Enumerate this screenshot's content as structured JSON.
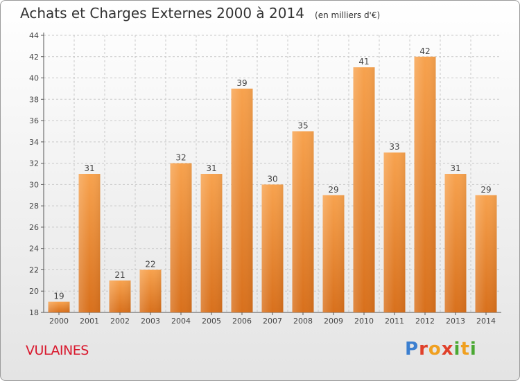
{
  "header": {
    "title": "Achats et Charges Externes 2000 à 2014",
    "unit": "(en milliers d'€)"
  },
  "footer": {
    "place": "VULAINES",
    "logo_text": "Proxiti"
  },
  "colors": {
    "bar_top": "#f7a24e",
    "bar_bottom": "#d8701c",
    "title": "#333333",
    "place": "#d9182d",
    "logo": [
      "#3b7fd0",
      "#e0402a",
      "#f0a020",
      "#e0402a",
      "#4aa832",
      "#f0a020",
      "#4aa832"
    ]
  },
  "chart_data": {
    "type": "bar",
    "title": "Achats et Charges Externes 2000 à 2014",
    "subtitle": "(en milliers d'€)",
    "xlabel": "",
    "ylabel": "",
    "categories": [
      "2000",
      "2001",
      "2002",
      "2003",
      "2004",
      "2005",
      "2006",
      "2007",
      "2008",
      "2009",
      "2010",
      "2011",
      "2012",
      "2013",
      "2014"
    ],
    "values": [
      19,
      31,
      21,
      22,
      32,
      31,
      39,
      30,
      35,
      29,
      41,
      33,
      42,
      31,
      29
    ],
    "ylim": [
      18,
      44
    ],
    "yticks": [
      18,
      20,
      22,
      24,
      26,
      28,
      30,
      32,
      34,
      36,
      38,
      40,
      42,
      44
    ],
    "grid": true,
    "data_labels": true
  }
}
